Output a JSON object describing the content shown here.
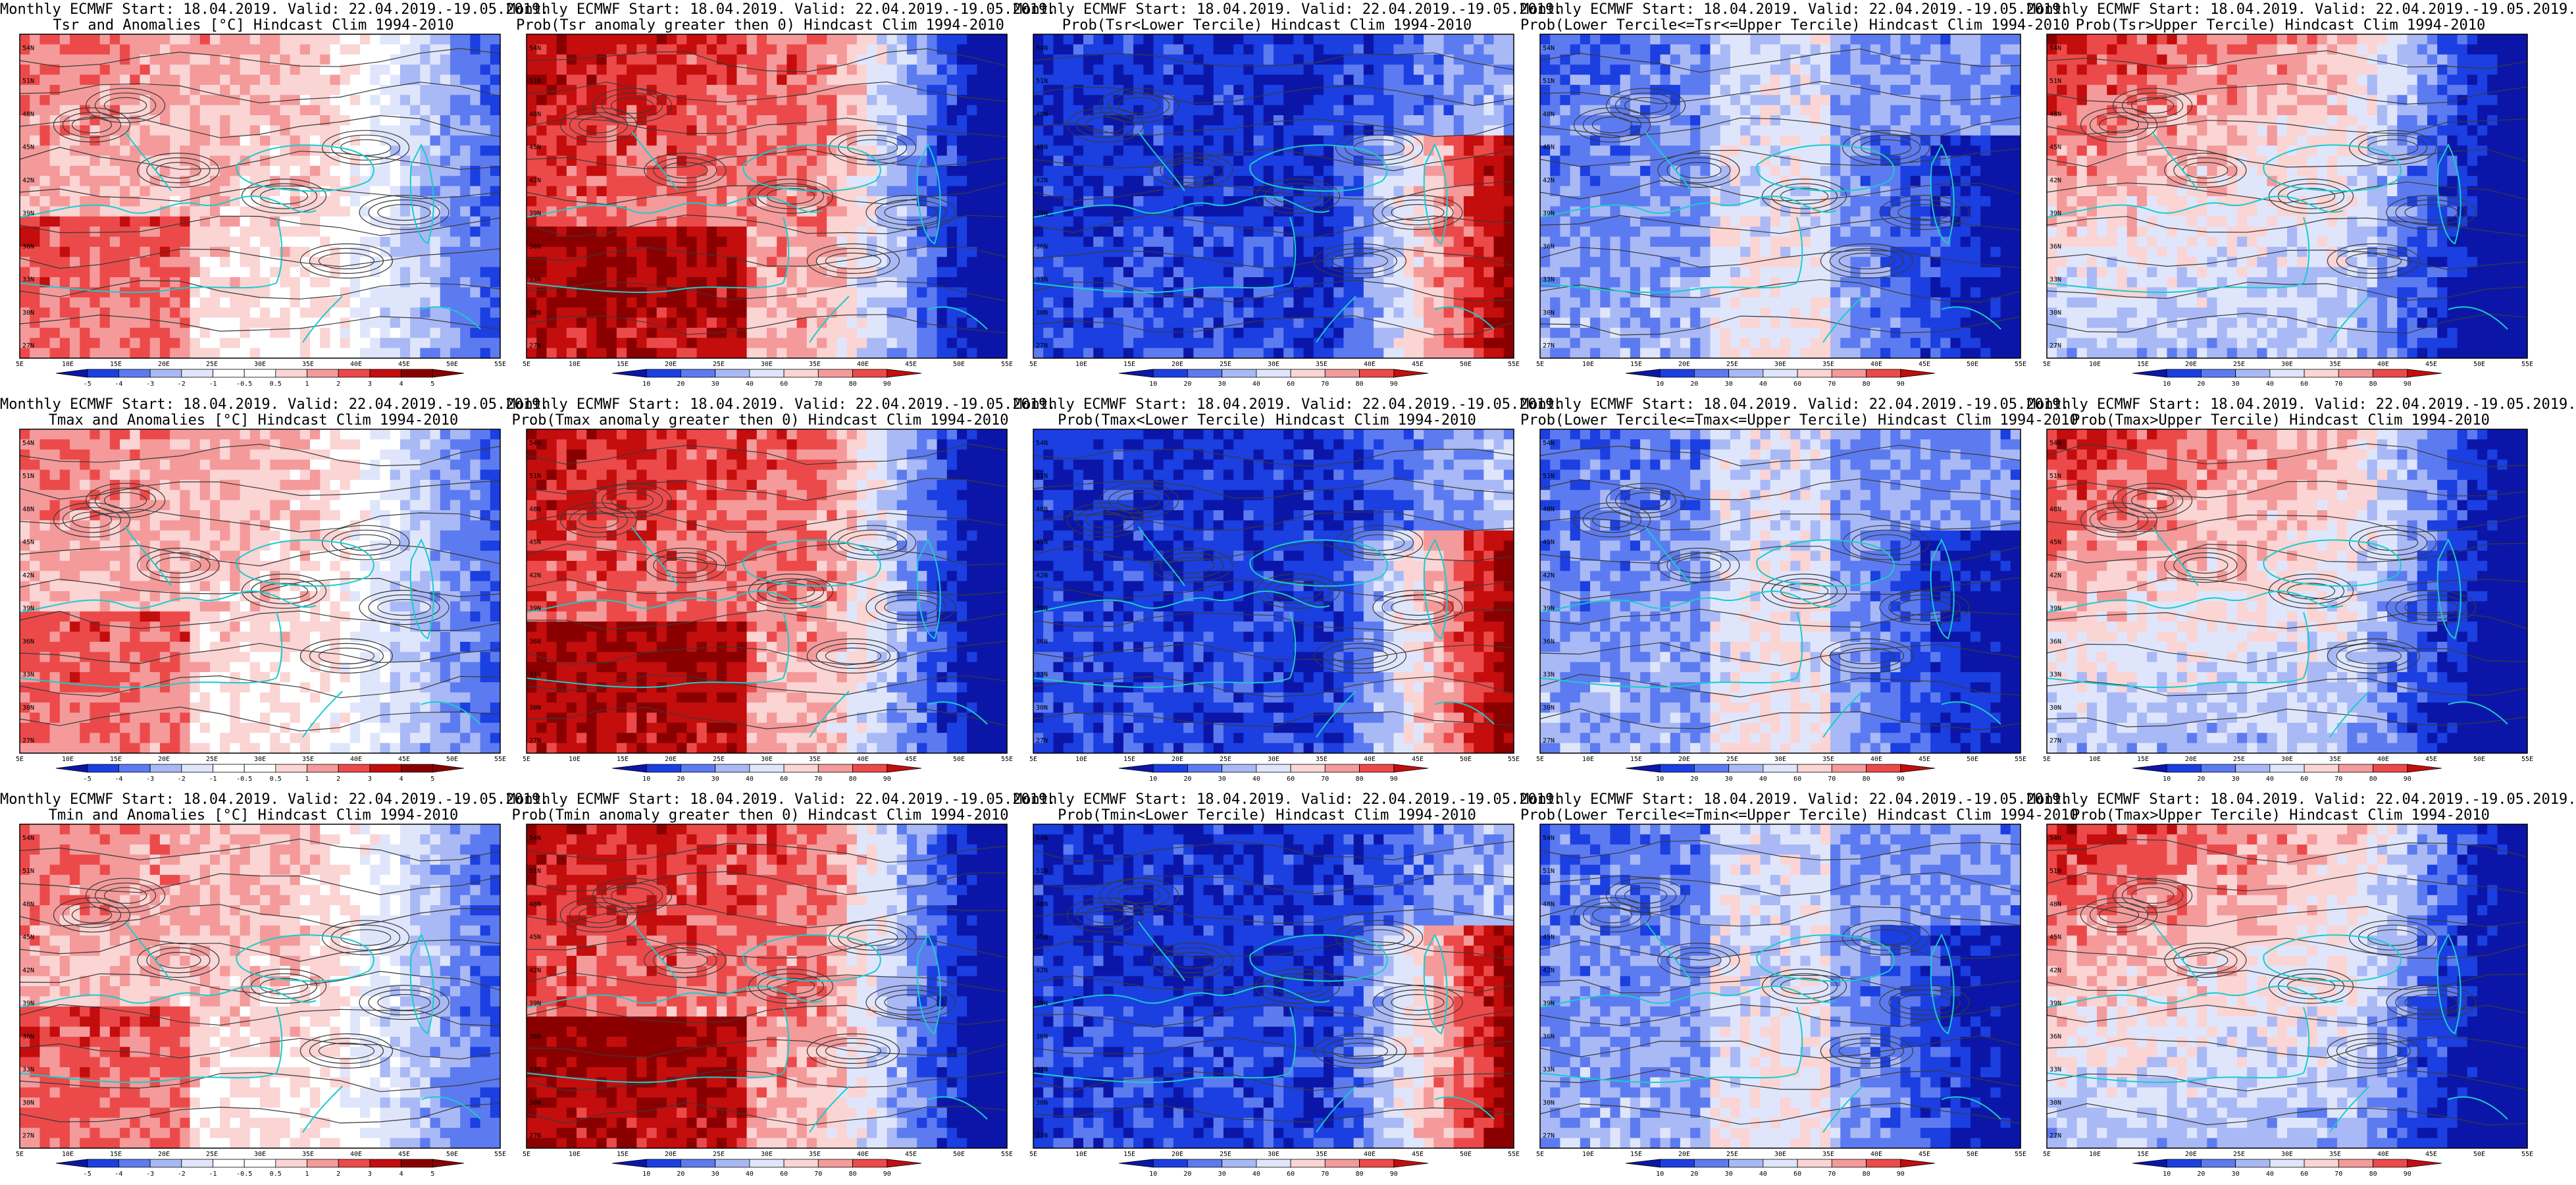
{
  "panels": [
    {
      "row": 0,
      "col": 0,
      "title_line1": "Monthly ECMWF Start: 18.04.2019. Valid: 22.04.2019.-19.05.2019.",
      "title_line2": "Tsr and Anomalies [°C] Hindcast Clim 1994-2010",
      "legend": [
        "-5",
        "-4",
        "-3",
        "-2",
        "-1",
        "-0.5",
        "0.5",
        "1",
        "2",
        "3",
        "4",
        "5"
      ],
      "kind": "anomaly",
      "seed": 1
    },
    {
      "row": 0,
      "col": 1,
      "title_line1": "Monthly ECMWF Start: 18.04.2019. Valid: 22.04.2019.-19.05.2019.",
      "title_line2": "Prob(Tsr anomaly greater then 0) Hindcast Clim 1994-2010",
      "legend": [
        "10",
        "20",
        "30",
        "40",
        "60",
        "70",
        "80",
        "90"
      ],
      "kind": "prob_above",
      "seed": 2
    },
    {
      "row": 0,
      "col": 2,
      "title_line1": "Monthly ECMWF Start: 18.04.2019. Valid: 22.04.2019.-19.05.2019.",
      "title_line2": "Prob(Tsr<Lower Tercile) Hindcast Clim 1994-2010",
      "legend": [
        "10",
        "20",
        "30",
        "40",
        "60",
        "70",
        "80",
        "90"
      ],
      "kind": "prob_lower",
      "seed": 3
    },
    {
      "row": 0,
      "col": 3,
      "title_line1": "Monthly ECMWF Start: 18.04.2019. Valid: 22.04.2019.-19.05.2019.",
      "title_line2": "Prob(Lower Tercile<=Tsr<=Upper Tercile) Hindcast Clim 1994-2010",
      "legend": [
        "10",
        "20",
        "30",
        "40",
        "60",
        "70",
        "80",
        "90"
      ],
      "kind": "prob_middle",
      "seed": 4
    },
    {
      "row": 0,
      "col": 4,
      "title_line1": "Monthly ECMWF Start: 18.04.2019. Valid: 22.04.2019.-19.05.2019.",
      "title_line2": "Prob(Tsr>Upper Tercile) Hindcast Clim 1994-2010",
      "legend": [
        "10",
        "20",
        "30",
        "40",
        "60",
        "70",
        "80",
        "90"
      ],
      "kind": "prob_upper",
      "seed": 5
    },
    {
      "row": 1,
      "col": 0,
      "title_line1": "Monthly ECMWF Start: 18.04.2019. Valid: 22.04.2019.-19.05.2019.",
      "title_line2": "Tmax and Anomalies [°C] Hindcast Clim 1994-2010",
      "legend": [
        "-5",
        "-4",
        "-3",
        "-2",
        "-1",
        "-0.5",
        "0.5",
        "1",
        "2",
        "3",
        "4",
        "5"
      ],
      "kind": "anomaly",
      "seed": 6
    },
    {
      "row": 1,
      "col": 1,
      "title_line1": "Monthly ECMWF Start: 18.04.2019. Valid: 22.04.2019.-19.05.2019.",
      "title_line2": "Prob(Tmax anomaly greater then 0) Hindcast Clim 1994-2010",
      "legend": [
        "10",
        "20",
        "30",
        "40",
        "60",
        "70",
        "80",
        "90"
      ],
      "kind": "prob_above",
      "seed": 7
    },
    {
      "row": 1,
      "col": 2,
      "title_line1": "Monthly ECMWF Start: 18.04.2019. Valid: 22.04.2019.-19.05.2019.",
      "title_line2": "Prob(Tmax<Lower Tercile) Hindcast Clim 1994-2010",
      "legend": [
        "10",
        "20",
        "30",
        "40",
        "60",
        "70",
        "80",
        "90"
      ],
      "kind": "prob_lower",
      "seed": 8
    },
    {
      "row": 1,
      "col": 3,
      "title_line1": "Monthly ECMWF Start: 18.04.2019. Valid: 22.04.2019.-19.05.2019.",
      "title_line2": "Prob(Lower Tercile<=Tmax<=Upper Tercile) Hindcast Clim 1994-2010",
      "legend": [
        "10",
        "20",
        "30",
        "40",
        "60",
        "70",
        "80",
        "90"
      ],
      "kind": "prob_middle",
      "seed": 9
    },
    {
      "row": 1,
      "col": 4,
      "title_line1": "Monthly ECMWF Start: 18.04.2019. Valid: 22.04.2019.-19.05.2019.",
      "title_line2": "Prob(Tmax>Upper Tercile) Hindcast Clim 1994-2010",
      "legend": [
        "10",
        "20",
        "30",
        "40",
        "60",
        "70",
        "80",
        "90"
      ],
      "kind": "prob_upper",
      "seed": 10
    },
    {
      "row": 2,
      "col": 0,
      "title_line1": "Monthly ECMWF Start: 18.04.2019. Valid: 22.04.2019.-19.05.2019.",
      "title_line2": "Tmin and Anomalies [°C] Hindcast Clim 1994-2010",
      "legend": [
        "-5",
        "-4",
        "-3",
        "-2",
        "-1",
        "-0.5",
        "0.5",
        "1",
        "2",
        "3",
        "4",
        "5"
      ],
      "kind": "anomaly",
      "seed": 11
    },
    {
      "row": 2,
      "col": 1,
      "title_line1": "Monthly ECMWF Start: 18.04.2019. Valid: 22.04.2019.-19.05.2019.",
      "title_line2": "Prob(Tmin anomaly greater then 0) Hindcast Clim 1994-2010",
      "legend": [
        "10",
        "20",
        "30",
        "40",
        "60",
        "70",
        "80",
        "90"
      ],
      "kind": "prob_above",
      "seed": 12
    },
    {
      "row": 2,
      "col": 2,
      "title_line1": "Monthly ECMWF Start: 18.04.2019. Valid: 22.04.2019.-19.05.2019.",
      "title_line2": "Prob(Tmin<Lower Tercile) Hindcast Clim 1994-2010",
      "legend": [
        "10",
        "20",
        "30",
        "40",
        "60",
        "70",
        "80",
        "90"
      ],
      "kind": "prob_lower",
      "seed": 13
    },
    {
      "row": 2,
      "col": 3,
      "title_line1": "Monthly ECMWF Start: 18.04.2019. Valid: 22.04.2019.-19.05.2019.",
      "title_line2": "Prob(Lower Tercile<=Tmin<=Upper Tercile) Hindcast Clim 1994-2010",
      "legend": [
        "10",
        "20",
        "30",
        "40",
        "60",
        "70",
        "80",
        "90"
      ],
      "kind": "prob_middle",
      "seed": 14
    },
    {
      "row": 2,
      "col": 4,
      "title_line1": "Monthly ECMWF Start: 18.04.2019. Valid: 22.04.2019.-19.05.2019.",
      "title_line2": "Prob(Tmax>Upper Tercile) Hindcast Clim 1994-2010",
      "legend": [
        "10",
        "20",
        "30",
        "40",
        "60",
        "70",
        "80",
        "90"
      ],
      "kind": "prob_upper",
      "seed": 15
    }
  ],
  "lon_labels": [
    "5E",
    "10E",
    "15E",
    "20E",
    "25E",
    "30E",
    "35E",
    "40E",
    "45E",
    "50E",
    "55E"
  ],
  "lat_labels": [
    "54N",
    "51N",
    "48N",
    "45N",
    "42N",
    "39N",
    "36N",
    "33N",
    "30N",
    "27N"
  ],
  "colors": {
    "deep_blue": "#0b16a8",
    "blue": "#1b3fe0",
    "mid_blue": "#5d7bf0",
    "light_blue": "#a9b9f6",
    "pale_blue": "#dfe6fc",
    "white": "#ffffff",
    "pale_red": "#fbd4d4",
    "light_red": "#f49a9a",
    "red": "#ec4a4a",
    "deep_red": "#c40d0d",
    "dark_red": "#8a0000",
    "coast": "#19cccc",
    "contour": "#3a3a3a"
  }
}
